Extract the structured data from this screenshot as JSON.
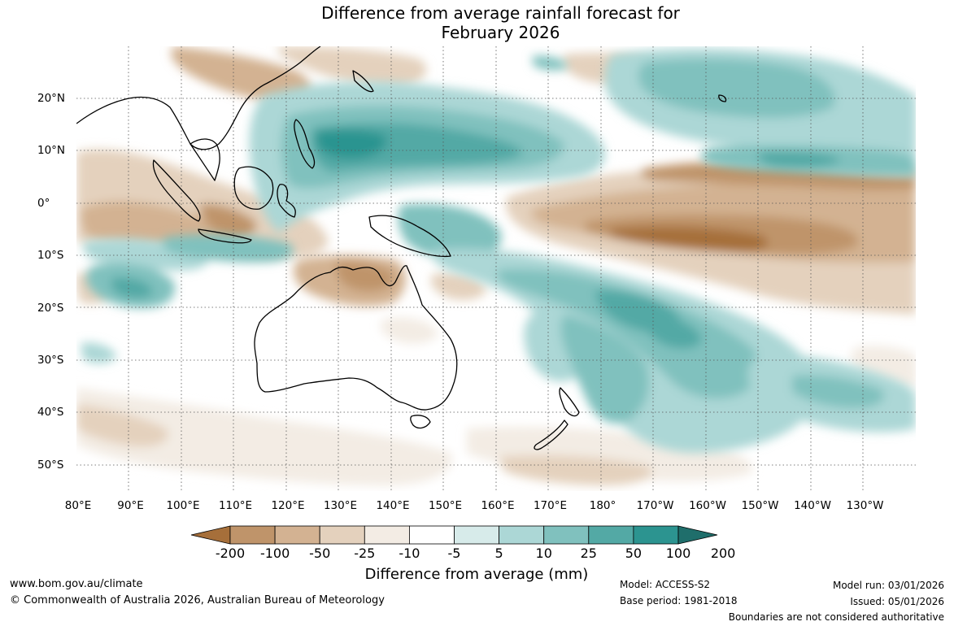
{
  "title_line1": "Difference from average rainfall forecast for",
  "title_line2": "February 2026",
  "longitude_labels": [
    "80°E",
    "90°E",
    "100°E",
    "110°E",
    "120°E",
    "130°E",
    "140°E",
    "150°E",
    "160°E",
    "170°E",
    "180°",
    "170°W",
    "160°W",
    "150°W",
    "140°W",
    "130°W"
  ],
  "latitude_labels": [
    "20°N",
    "10°N",
    "0°",
    "10°S",
    "20°S",
    "30°S",
    "40°S",
    "50°S"
  ],
  "colorbar": {
    "title": "Difference from average (mm)",
    "tick_labels": [
      "-200",
      "-100",
      "-50",
      "-25",
      "-10",
      "-5",
      "5",
      "10",
      "25",
      "50",
      "100",
      "200"
    ],
    "colors": [
      "#a66f3a",
      "#bf946a",
      "#d3b292",
      "#e4d1bd",
      "#f3ece4",
      "#ffffff",
      "#d7ebea",
      "#acd7d6",
      "#80c1be",
      "#53a9a5",
      "#2c9490",
      "#1f6e6b"
    ]
  },
  "footer": {
    "website": "www.bom.gov.au/climate",
    "copyright": "© Commonwealth of Australia 2026, Australian Bureau of Meteorology",
    "model": "Model: ACCESS-S2",
    "base_period": "Base period: 1981-2018",
    "model_run": "Model run: 03/01/2026",
    "issued": "Issued: 05/01/2026",
    "disclaimer": "Boundaries are not considered authoritative"
  }
}
